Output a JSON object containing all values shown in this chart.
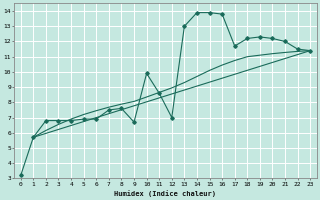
{
  "xlabel": "Humidex (Indice chaleur)",
  "xlim": [
    -0.5,
    23.5
  ],
  "ylim": [
    3,
    14.5
  ],
  "xticks": [
    0,
    1,
    2,
    3,
    4,
    5,
    6,
    7,
    8,
    9,
    10,
    11,
    12,
    13,
    14,
    15,
    16,
    17,
    18,
    19,
    20,
    21,
    22,
    23
  ],
  "yticks": [
    3,
    4,
    5,
    6,
    7,
    8,
    9,
    10,
    11,
    12,
    13,
    14
  ],
  "bg_color": "#c5e8e0",
  "grid_color": "#ffffff",
  "line_color": "#1a6b5a",
  "line1_x": [
    0,
    1,
    2,
    3,
    4,
    5,
    6,
    7,
    8,
    9,
    10,
    11,
    12,
    13,
    14,
    15,
    16,
    17,
    18,
    19,
    20,
    21,
    22,
    23
  ],
  "line1_y": [
    3.2,
    5.7,
    6.8,
    6.8,
    6.8,
    6.9,
    6.9,
    7.5,
    7.6,
    6.7,
    9.9,
    8.6,
    7.0,
    13.0,
    13.9,
    13.9,
    13.8,
    11.7,
    12.2,
    12.3,
    12.2,
    12.0,
    11.5,
    11.4
  ],
  "line2_x": [
    1,
    23
  ],
  "line2_y": [
    5.7,
    11.4
  ],
  "line3_x": [
    1,
    2,
    3,
    4,
    5,
    6,
    7,
    8,
    9,
    10,
    11,
    12,
    13,
    14,
    15,
    16,
    17,
    18,
    19,
    20,
    21,
    22,
    23
  ],
  "line3_y": [
    5.7,
    6.15,
    6.55,
    6.9,
    7.2,
    7.45,
    7.68,
    7.88,
    8.06,
    8.35,
    8.65,
    8.95,
    9.3,
    9.7,
    10.1,
    10.45,
    10.75,
    11.0,
    11.1,
    11.2,
    11.28,
    11.35,
    11.4
  ]
}
